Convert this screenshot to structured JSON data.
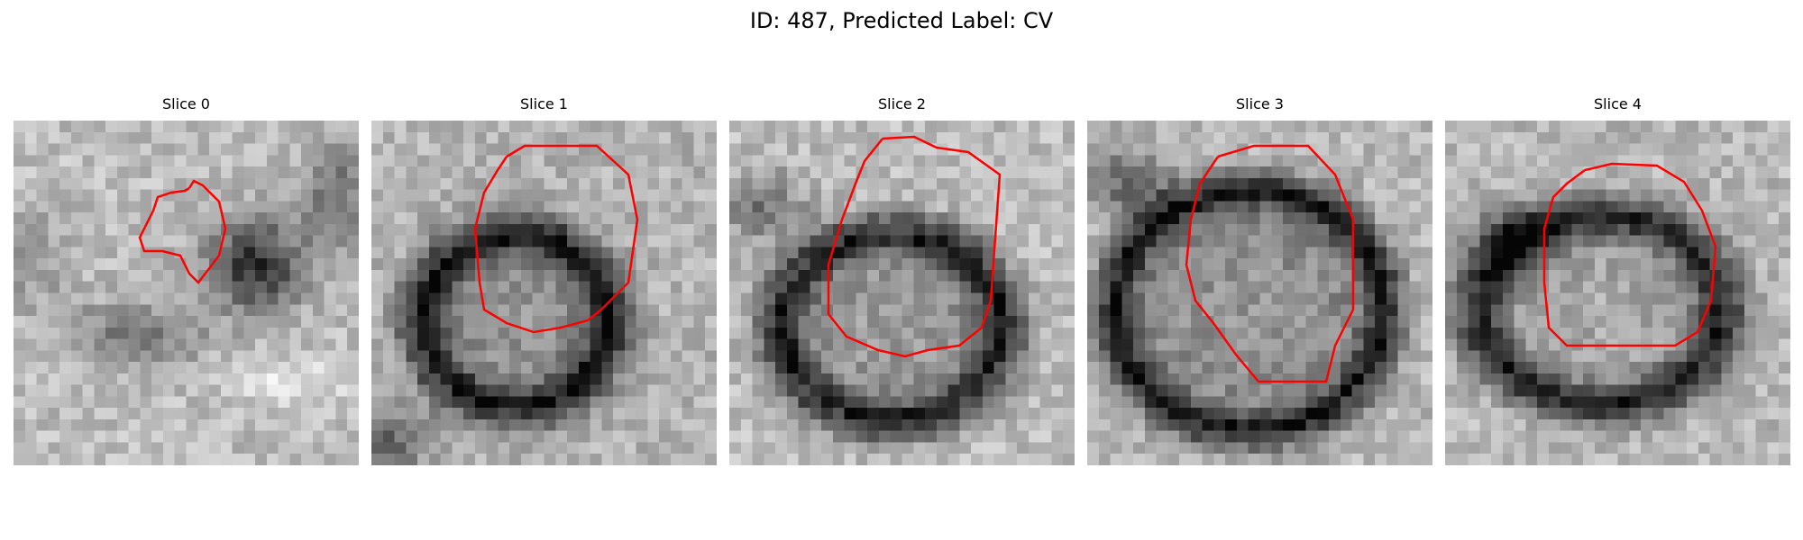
{
  "figure": {
    "title": "ID: 487, Predicted Label: CV"
  },
  "panels": [
    {
      "title": "Slice 0"
    },
    {
      "title": "Slice 1"
    },
    {
      "title": "Slice 2"
    },
    {
      "title": "Slice 3"
    },
    {
      "title": "Slice 4"
    }
  ],
  "colors": {
    "background": "#ffffff",
    "contour": "#ff0000",
    "image_colormap": "grayscale"
  }
}
